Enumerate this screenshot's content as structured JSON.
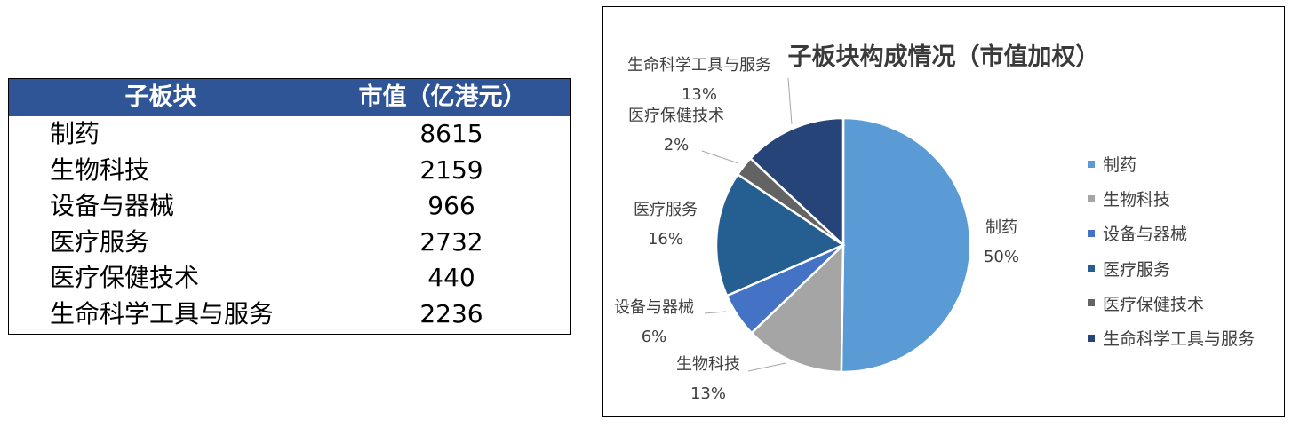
{
  "table": {
    "headers": [
      "子板块",
      "市值（亿港元）"
    ],
    "rows": [
      {
        "name": "制药",
        "value": "8615"
      },
      {
        "name": "生物科技",
        "value": "2159"
      },
      {
        "name": "设备与器械",
        "value": "966"
      },
      {
        "name": "医疗服务",
        "value": "2732"
      },
      {
        "name": "医疗保健技术",
        "value": "440"
      },
      {
        "name": "生命科学工具与服务",
        "value": "2236"
      }
    ],
    "header_color": "#2f5597"
  },
  "chart_data": {
    "type": "pie",
    "title": "子板块构成情况（市值加权）",
    "categories": [
      "制药",
      "生物科技",
      "设备与器械",
      "医疗服务",
      "医疗保健技术",
      "生命科学工具与服务"
    ],
    "values": [
      8615,
      2159,
      966,
      2732,
      440,
      2236
    ],
    "percent_labels": [
      "50%",
      "13%",
      "6%",
      "16%",
      "2%",
      "13%"
    ],
    "colors": [
      "#5b9bd5",
      "#a5a5a5",
      "#4472c4",
      "#255e91",
      "#636363",
      "#264478"
    ],
    "legend": [
      "制药",
      "生物科技",
      "设备与器械",
      "医疗服务",
      "医疗保健技术",
      "生命科学工具与服务"
    ],
    "legend_position": "right"
  }
}
